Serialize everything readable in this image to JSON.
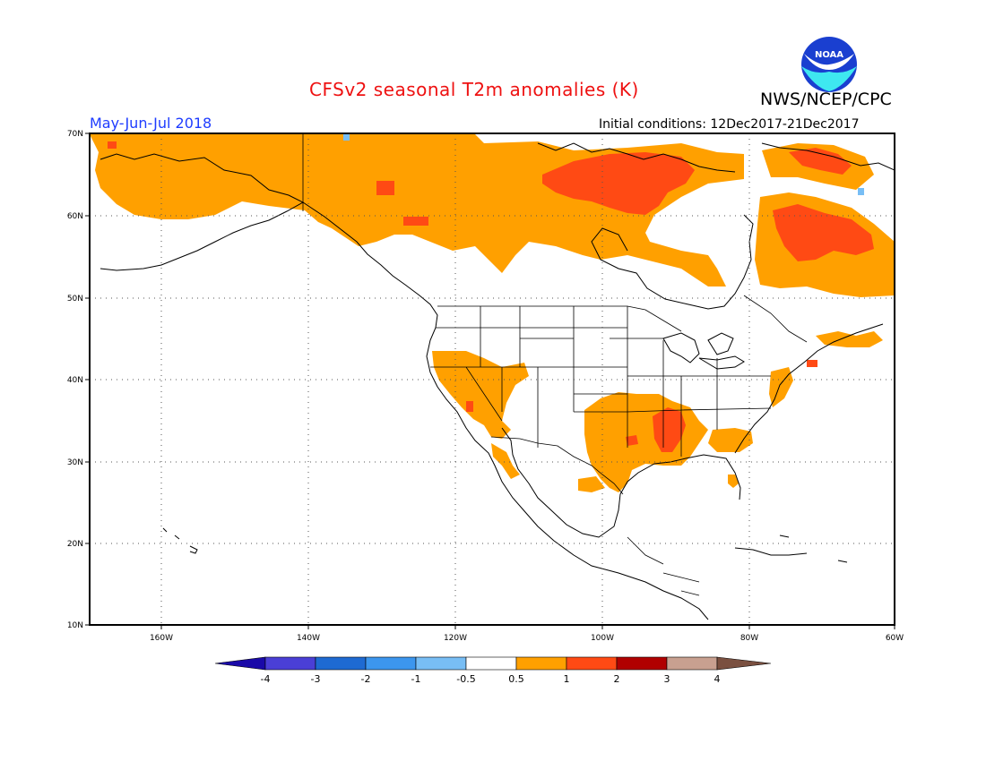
{
  "header": {
    "title": "CFSv2 seasonal T2m anomalies (K)",
    "organization": "NWS/NCEP/CPC",
    "period": "May-Jun-Jul 2018",
    "initial_conditions": "Initial conditions: 12Dec2017-21Dec2017",
    "logo_text": "NOAA"
  },
  "map": {
    "projection": "equirectangular",
    "lon_range": [
      -172,
      -60
    ],
    "lat_range": [
      10,
      70
    ],
    "grid": true,
    "lat_labels": [
      "70N",
      "60N",
      "50N",
      "40N",
      "30N",
      "20N",
      "10N"
    ],
    "lon_labels": [
      "160W",
      "140W",
      "120W",
      "100W",
      "80W",
      "60W"
    ]
  },
  "colorbar": {
    "tick_labels": [
      "-4",
      "-3",
      "-2",
      "-1",
      "-0.5",
      "0.5",
      "1",
      "2",
      "3",
      "4"
    ],
    "colors": [
      "#1a0aa8",
      "#4a3fd6",
      "#1e6ad2",
      "#3c96ee",
      "#78bef5",
      "#ffffff",
      "#ffa000",
      "#ff4a14",
      "#b00000",
      "#c8a090",
      "#7a5040"
    ]
  },
  "anomaly_regions": [
    {
      "name": "Alaska / Yukon",
      "level": "0.5-1"
    },
    {
      "name": "Northwest Territories / Nunavut",
      "level": "0.5-1"
    },
    {
      "name": "Hudson Bay west / Nunavut core",
      "level": "1-2"
    },
    {
      "name": "Quebec / Labrador",
      "level": "0.5-1"
    },
    {
      "name": "Northern Quebec core",
      "level": "1-2"
    },
    {
      "name": "Baffin / Greenland edge",
      "level": "1-2"
    },
    {
      "name": "US Southwest / Great Basin",
      "level": "0.5-1"
    },
    {
      "name": "Southern Plains / Lower Mississippi",
      "level": "0.5-1"
    },
    {
      "name": "Arkansas / Mississippi core",
      "level": "1-2"
    },
    {
      "name": "Southeast coast",
      "level": "0.5-1"
    },
    {
      "name": "Northeast US / Maritimes",
      "level": "0.5-1"
    }
  ]
}
